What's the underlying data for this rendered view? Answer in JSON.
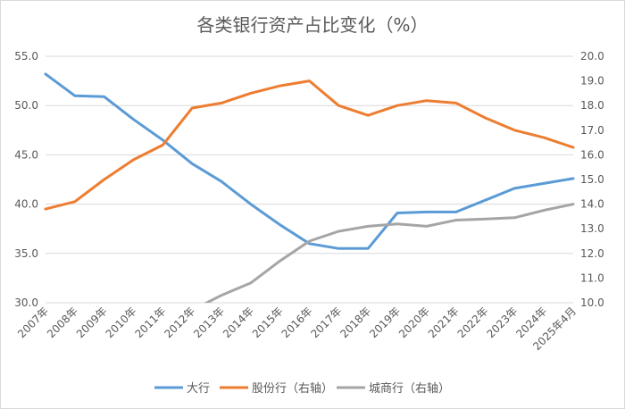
{
  "chart_data": {
    "type": "line",
    "title": "各类银行资产占比变化（%）",
    "categories": [
      "2007年",
      "2008年",
      "2009年",
      "2010年",
      "2011年",
      "2012年",
      "2013年",
      "2014年",
      "2015年",
      "2016年",
      "2017年",
      "2018年",
      "2019年",
      "2020年",
      "2021年",
      "2022年",
      "2023年",
      "2024年",
      "2025年4月"
    ],
    "y_left": {
      "min": 30,
      "max": 55,
      "step": 5,
      "ticks": [
        "30.0",
        "35.0",
        "40.0",
        "45.0",
        "50.0",
        "55.0"
      ]
    },
    "y_right": {
      "min": 10,
      "max": 20,
      "step": 1,
      "ticks": [
        "10.0",
        "11.0",
        "12.0",
        "13.0",
        "14.0",
        "15.0",
        "16.0",
        "17.0",
        "18.0",
        "19.0",
        "20.0"
      ]
    },
    "grid": true,
    "legend_position": "bottom",
    "series": [
      {
        "name": "大行",
        "axis": "left",
        "color": "#5b9bd5",
        "values": [
          53.2,
          51.0,
          50.9,
          48.6,
          46.5,
          44.1,
          42.3,
          40.0,
          37.9,
          36.0,
          35.5,
          35.5,
          39.1,
          39.2,
          39.2,
          40.4,
          41.6,
          42.1,
          42.6
        ]
      },
      {
        "name": "股份行（右轴）",
        "axis": "right",
        "color": "#ed7d31",
        "values": [
          13.8,
          14.1,
          15.0,
          15.8,
          16.4,
          17.9,
          18.1,
          18.5,
          18.8,
          19.0,
          18.0,
          17.6,
          18.0,
          18.2,
          18.1,
          17.5,
          17.0,
          16.7,
          16.3
        ]
      },
      {
        "name": "城商行（右轴）",
        "axis": "right",
        "color": "#a5a5a5",
        "values": [
          null,
          null,
          null,
          null,
          null,
          9.7,
          10.3,
          10.8,
          11.7,
          12.5,
          12.9,
          13.1,
          13.2,
          13.1,
          13.35,
          13.4,
          13.45,
          13.75,
          14.0
        ]
      }
    ]
  }
}
